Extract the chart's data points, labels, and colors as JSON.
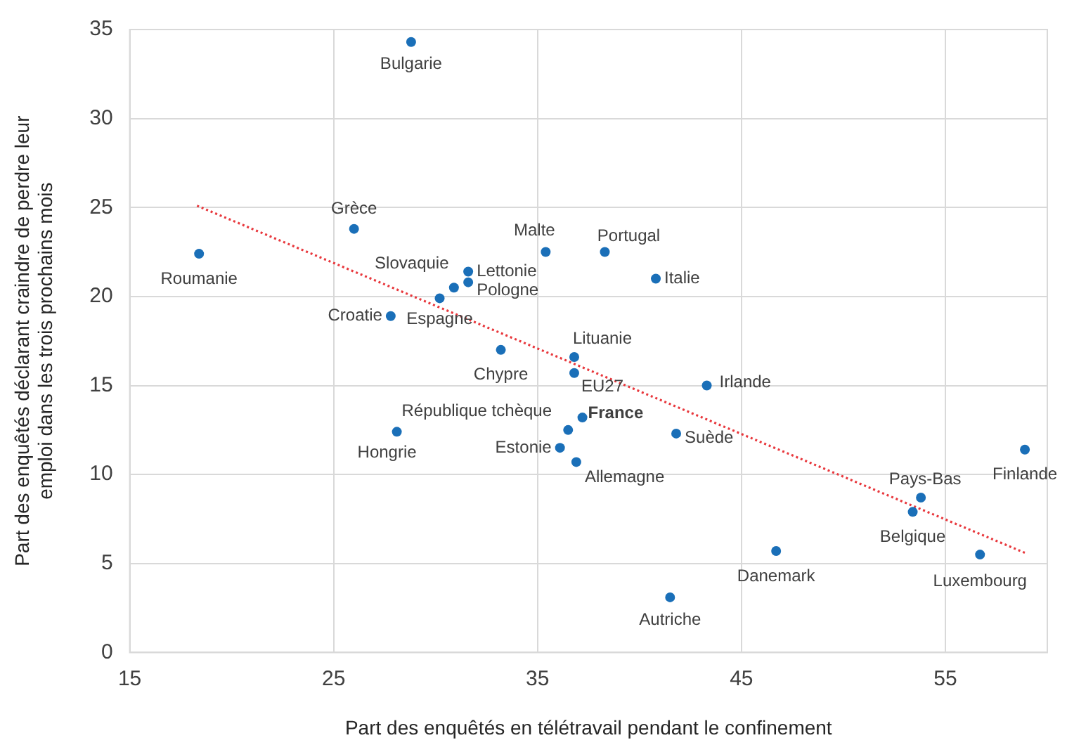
{
  "chart_data": {
    "type": "scatter",
    "xlabel": "Part des enquêtés en télétravail pendant le confinement",
    "ylabel": "Part des enquêtés déclarant craindre de perdre leur emploi dans les trois prochains mois",
    "xlim": [
      15,
      60
    ],
    "xticks": [
      15,
      25,
      35,
      45,
      55
    ],
    "ylim": [
      0,
      35
    ],
    "yticks": [
      0,
      5,
      10,
      15,
      20,
      25,
      30,
      35
    ],
    "grid": true,
    "legend": false,
    "marker": "circle",
    "series": [
      {
        "color": "#1a6fb8",
        "x": [
          28.8,
          26.0,
          18.4,
          35.4,
          31.6,
          31.6,
          30.9,
          30.2,
          27.8,
          38.3,
          40.8,
          36.8,
          36.8,
          43.3,
          37.2,
          41.8,
          58.9,
          33.2,
          36.5,
          28.1,
          36.1,
          36.9,
          53.8,
          53.4,
          46.7,
          56.7,
          41.5
        ],
        "values": [
          34.3,
          23.8,
          22.4,
          22.5,
          21.4,
          20.8,
          20.5,
          19.9,
          18.9,
          22.5,
          21.0,
          16.6,
          15.7,
          15.0,
          13.2,
          12.3,
          11.4,
          17.0,
          12.5,
          12.4,
          11.5,
          10.7,
          8.7,
          7.9,
          5.7,
          5.5,
          3.1
        ]
      },
      {
        "type": "line",
        "color": "#e8383d",
        "line_style": "dotted",
        "marker": "none",
        "x": [
          18.3,
          58.9
        ],
        "values": [
          25.1,
          5.6
        ]
      }
    ],
    "annotations": [
      {
        "text": "Bulgarie",
        "x": 28.8,
        "y": 34.3
      },
      {
        "text": "Grèce",
        "x": 26.0,
        "y": 23.8
      },
      {
        "text": "Roumanie",
        "x": 18.4,
        "y": 22.4
      },
      {
        "text": "Malte",
        "x": 35.4,
        "y": 22.5
      },
      {
        "text": "Lettonie",
        "x": 31.6,
        "y": 21.4
      },
      {
        "text": "Pologne",
        "x": 31.6,
        "y": 20.8
      },
      {
        "text": "Slovaquie",
        "x": 30.9,
        "y": 20.5
      },
      {
        "text": "Espagne",
        "x": 30.2,
        "y": 19.9
      },
      {
        "text": "Croatie",
        "x": 27.8,
        "y": 18.9
      },
      {
        "text": "Portugal",
        "x": 38.3,
        "y": 22.5
      },
      {
        "text": "Italie",
        "x": 40.8,
        "y": 21.0
      },
      {
        "text": "Lituanie",
        "x": 36.8,
        "y": 16.6
      },
      {
        "text": "EU27",
        "x": 36.8,
        "y": 15.7
      },
      {
        "text": "Irlande",
        "x": 43.3,
        "y": 15.0
      },
      {
        "text": "France",
        "x": 37.2,
        "y": 13.2
      },
      {
        "text": "Suède",
        "x": 41.8,
        "y": 12.3
      },
      {
        "text": "Finlande",
        "x": 58.9,
        "y": 11.4
      },
      {
        "text": "Chypre",
        "x": 33.2,
        "y": 17.0
      },
      {
        "text": "République tchèque",
        "x": 36.5,
        "y": 12.5
      },
      {
        "text": "Hongrie",
        "x": 28.1,
        "y": 12.4
      },
      {
        "text": "Estonie",
        "x": 36.1,
        "y": 11.5
      },
      {
        "text": "Allemagne",
        "x": 36.9,
        "y": 10.7
      },
      {
        "text": "Pays-Bas",
        "x": 53.8,
        "y": 8.7
      },
      {
        "text": "Belgique",
        "x": 53.4,
        "y": 7.9
      },
      {
        "text": "Danemark",
        "x": 46.7,
        "y": 5.7
      },
      {
        "text": "Luxembourg",
        "x": 56.7,
        "y": 5.5
      },
      {
        "text": "Autriche",
        "x": 41.5,
        "y": 3.1
      }
    ]
  }
}
